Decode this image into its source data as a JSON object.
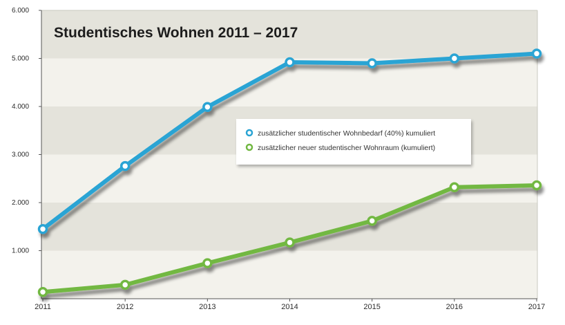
{
  "chart_data": {
    "type": "line",
    "title": "Studentisches Wohnen 2011 – 2017",
    "xlabel": "",
    "ylabel": "",
    "x": [
      "2011",
      "2012",
      "2013",
      "2014",
      "2015",
      "2016",
      "2017"
    ],
    "ylim": [
      0,
      6000
    ],
    "yticks": [
      1000,
      2000,
      3000,
      4000,
      5000,
      6000
    ],
    "ytick_labels": [
      "1.000",
      "2.000",
      "3.000",
      "4.000",
      "5.000",
      "6.000"
    ],
    "series": [
      {
        "name": "zusätzlicher studentischer Wohnbedarf (40%) kumuliert",
        "color": "#2aa4d4",
        "values": [
          1450,
          2760,
          3990,
          4920,
          4900,
          5000,
          5100
        ]
      },
      {
        "name": "zusätzlicher neuer studentischer Wohnraum (kumuliert)",
        "color": "#72b843",
        "values": [
          140,
          290,
          740,
          1170,
          1620,
          2320,
          2360
        ]
      }
    ],
    "legend_position": "center-right",
    "grid": "horizontal alternating bands"
  }
}
